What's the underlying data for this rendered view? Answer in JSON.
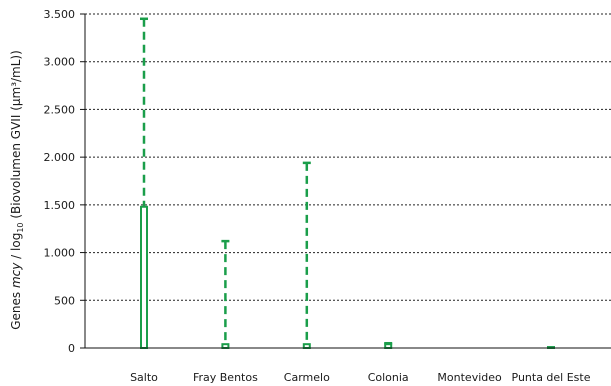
{
  "chart_data": {
    "type": "bar",
    "categories": [
      "Salto",
      "Fray Bentos",
      "Carmelo",
      "Colonia",
      "Montevideo",
      "Punta del Este"
    ],
    "values": [
      1480,
      40,
      40,
      40,
      0,
      10
    ],
    "error_max": [
      3450,
      1120,
      1940,
      50,
      0,
      10
    ],
    "ylabel": {
      "prefix": "Genes ",
      "italic": "mcy",
      "middle": " / log",
      "subscript": "10",
      "suffix": " (Biovolumen GVII (µm³/mL))"
    },
    "yticks": [
      0,
      500,
      1000,
      1500,
      2000,
      2500,
      3000,
      3500
    ],
    "ytick_labels": [
      "0",
      "500",
      "1.000",
      "1.500",
      "2.000",
      "2.500",
      "3.000",
      "3.500"
    ],
    "ylim": [
      0,
      3500
    ],
    "grid": true,
    "bar_color": "#1a9e4a",
    "error_color": "#1a9e4a"
  }
}
